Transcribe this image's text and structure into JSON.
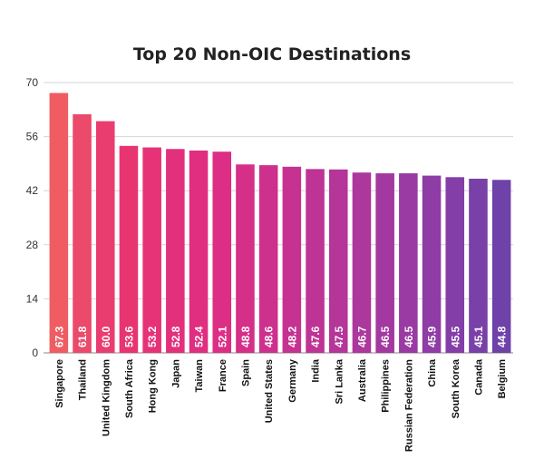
{
  "chart_data": {
    "type": "bar",
    "title": "Top 20 Non-OIC Destinations",
    "xlabel": "",
    "ylabel": "",
    "ylim": [
      0,
      70
    ],
    "yticks": [
      0,
      14,
      28,
      42,
      56,
      70
    ],
    "grid": true,
    "categories": [
      "Singapore",
      "Thailand",
      "United Kingdom",
      "South Africa",
      "Hong Kong",
      "Japan",
      "Taiwan",
      "France",
      "Spain",
      "United States",
      "Germany",
      "India",
      "Sri Lanka",
      "Australia",
      "Philippines",
      "Russian Federation",
      "China",
      "South Korea",
      "Canada",
      "Belgium"
    ],
    "values": [
      67.3,
      61.8,
      60.0,
      53.6,
      53.2,
      52.8,
      52.4,
      52.1,
      48.8,
      48.6,
      48.2,
      47.6,
      47.5,
      46.7,
      46.5,
      46.5,
      45.9,
      45.5,
      45.1,
      44.8
    ],
    "data_labels": [
      "67.3",
      "61.8",
      "60.0",
      "53.6",
      "53.2",
      "52.8",
      "52.4",
      "52.1",
      "48.8",
      "48.6",
      "48.2",
      "47.6",
      "47.5",
      "46.7",
      "46.5",
      "46.5",
      "45.9",
      "45.5",
      "45.1",
      "44.8"
    ],
    "colors": [
      "#ef5d62",
      "#ec4a6a",
      "#ea3d6f",
      "#e83572",
      "#e63277",
      "#e3307c",
      "#e02e80",
      "#dc2e84",
      "#d52f88",
      "#cd308d",
      "#c63291",
      "#be3495",
      "#b53599",
      "#ac379d",
      "#a338a0",
      "#9a3aa3",
      "#8f3ca6",
      "#843ea7",
      "#7940a8",
      "#6e42a8"
    ]
  }
}
